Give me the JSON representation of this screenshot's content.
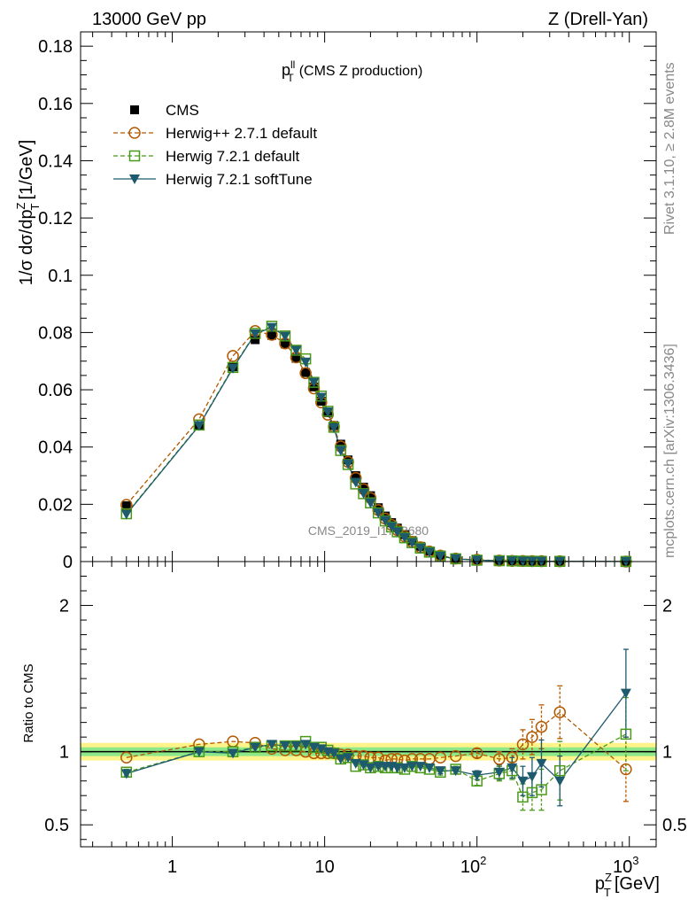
{
  "header": {
    "left": "13000 GeV pp",
    "right": "Z (Drell-Yan)"
  },
  "side": {
    "rivet": "Rivet 3.1.10, ≥ 2.8M events",
    "mcplots": "mcplots.cern.ch [arXiv:1306.3436]"
  },
  "plot": {
    "title_main": "p",
    "title_sup": "ll",
    "title_sub": "T",
    "title_rest": "(CMS Z production)",
    "watermark": "CMS_2019_I1753680",
    "ylabel_main": "1/σ dσ/dp",
    "ylabel_sup": "Z",
    "ylabel_sub": "T",
    "ylabel_unit": "[1/GeV]",
    "ratio_ylabel": "Ratio to CMS",
    "xlabel_main": "p",
    "xlabel_sup": "Z",
    "xlabel_sub": "T",
    "xlabel_unit": "[GeV]"
  },
  "legend": [
    {
      "name": "CMS",
      "color": "#000000",
      "marker": "square-filled",
      "line": "none"
    },
    {
      "name": "Herwig++ 2.7.1 default",
      "color": "#b35900",
      "marker": "circle-open",
      "line": "dashed"
    },
    {
      "name": "Herwig 7.2.1 default",
      "color": "#4a9a1a",
      "marker": "square-open",
      "line": "dashed"
    },
    {
      "name": "Herwig 7.2.1 softTune",
      "color": "#1e5a6e",
      "marker": "triangle-down-filled",
      "line": "solid"
    }
  ],
  "chart_data": {
    "type": "line",
    "x_scale": "log",
    "xlim": [
      0.25,
      1500
    ],
    "ylim_main": [
      0,
      0.185
    ],
    "ylim_ratio": [
      0.35,
      2.3
    ],
    "x_ticks": [
      "1",
      "10",
      "10^2",
      "10^3"
    ],
    "y_ticks_main": [
      "0",
      "0.02",
      "0.04",
      "0.06",
      "0.08",
      "0.1",
      "0.12",
      "0.14",
      "0.16",
      "0.18"
    ],
    "y_ticks_ratio": [
      "0.5",
      "1",
      "2"
    ],
    "x": [
      0.5,
      1.5,
      2.5,
      3.5,
      4.5,
      5.5,
      6.5,
      7.5,
      8.5,
      9.5,
      10.5,
      11.5,
      12.75,
      14.25,
      16,
      18,
      20,
      22.5,
      25,
      27.5,
      30,
      33.5,
      37.5,
      42.5,
      48.75,
      57.5,
      72.5,
      100,
      140,
      170,
      200,
      230,
      265,
      350,
      950
    ],
    "series": [
      {
        "name": "CMS",
        "values": [
          0.0195,
          0.0475,
          0.068,
          0.0775,
          0.079,
          0.076,
          0.071,
          0.066,
          0.061,
          0.056,
          0.052,
          0.0475,
          0.041,
          0.0355,
          0.03,
          0.026,
          0.023,
          0.0188,
          0.0159,
          0.0136,
          0.0117,
          0.0094,
          0.0073,
          0.0053,
          0.0037,
          0.0022,
          0.0011,
          0.0006,
          0.00035,
          0.00025,
          0.0002,
          0.00015,
          0.00012,
          8e-05,
          2e-05
        ],
        "ratio_band_inner": 0.03,
        "ratio_band_outer": 0.06
      },
      {
        "name": "Herwig++ 2.7.1 default",
        "values": [
          0.0198,
          0.0497,
          0.0718,
          0.0805,
          0.0792,
          0.0762,
          0.0713,
          0.0658,
          0.0605,
          0.0556,
          0.0513,
          0.0471,
          0.0402,
          0.0348,
          0.0292,
          0.0253,
          0.0222,
          0.018,
          0.015,
          0.0128,
          0.011,
          0.0088,
          0.0069,
          0.005,
          0.0035,
          0.0021,
          0.00105,
          0.0006,
          0.00033,
          0.00024,
          0.00021,
          0.00016,
          0.00014,
          0.0001,
          1.8e-05
        ],
        "ratio": [
          0.96,
          1.05,
          1.07,
          1.06,
          1.02,
          1.01,
          1.01,
          1.0,
          0.99,
          0.99,
          0.99,
          0.99,
          0.98,
          0.98,
          0.97,
          0.97,
          0.96,
          0.96,
          0.94,
          0.95,
          0.95,
          0.94,
          0.95,
          0.95,
          0.95,
          0.96,
          0.97,
          0.99,
          0.95,
          0.96,
          1.05,
          1.1,
          1.17,
          1.27,
          0.88
        ],
        "ratio_err": [
          0,
          0,
          0,
          0,
          0,
          0,
          0,
          0,
          0,
          0,
          0,
          0,
          0,
          0,
          0,
          0,
          0,
          0,
          0,
          0,
          0,
          0,
          0,
          0,
          0,
          0,
          0,
          0.03,
          0.05,
          0.06,
          0.1,
          0.12,
          0.15,
          0.18,
          0.22
        ]
      },
      {
        "name": "Herwig 7.2.1 default",
        "values": [
          0.0167,
          0.0477,
          0.0678,
          0.0797,
          0.0822,
          0.0788,
          0.0738,
          0.0708,
          0.0626,
          0.0578,
          0.0525,
          0.0469,
          0.0388,
          0.0339,
          0.0271,
          0.0237,
          0.0205,
          0.017,
          0.0142,
          0.0121,
          0.0104,
          0.0083,
          0.0066,
          0.0047,
          0.0033,
          0.0019,
          0.00097,
          0.00048,
          0.0003,
          0.00022,
          0.00014,
          0.00011,
          9e-05,
          7e-05,
          2.3e-05
        ],
        "ratio": [
          0.86,
          1.0,
          1.0,
          1.03,
          1.04,
          1.04,
          1.04,
          1.07,
          1.03,
          1.03,
          1.01,
          0.99,
          0.95,
          0.96,
          0.9,
          0.91,
          0.89,
          0.9,
          0.89,
          0.89,
          0.89,
          0.88,
          0.9,
          0.89,
          0.88,
          0.86,
          0.88,
          0.8,
          0.85,
          0.87,
          0.69,
          0.72,
          0.74,
          0.87,
          1.12
        ],
        "ratio_err": [
          0.02,
          0.01,
          0.01,
          0.01,
          0.01,
          0.01,
          0.01,
          0.01,
          0.01,
          0.01,
          0.01,
          0.01,
          0.01,
          0.01,
          0.01,
          0.01,
          0.01,
          0.01,
          0.01,
          0.01,
          0.01,
          0.01,
          0.01,
          0.01,
          0.01,
          0.02,
          0.02,
          0.03,
          0.05,
          0.06,
          0.09,
          0.12,
          0.14,
          0.2,
          0.25
        ]
      },
      {
        "name": "Herwig 7.2.1 softTune",
        "values": [
          0.0165,
          0.0475,
          0.0675,
          0.0795,
          0.0818,
          0.0787,
          0.0738,
          0.0697,
          0.0626,
          0.0574,
          0.0523,
          0.0467,
          0.0388,
          0.0341,
          0.0277,
          0.0238,
          0.0205,
          0.017,
          0.0143,
          0.0122,
          0.0104,
          0.0084,
          0.0066,
          0.0047,
          0.0033,
          0.0019,
          0.00097,
          0.00051,
          0.0003,
          0.00022,
          0.00016,
          0.00012,
          0.00011,
          6e-05,
          2.8e-05
        ],
        "ratio": [
          0.85,
          1.0,
          0.99,
          1.03,
          1.05,
          1.04,
          1.04,
          1.05,
          1.03,
          1.02,
          1.0,
          0.99,
          0.95,
          0.96,
          0.92,
          0.91,
          0.89,
          0.9,
          0.9,
          0.9,
          0.89,
          0.89,
          0.9,
          0.9,
          0.89,
          0.87,
          0.87,
          0.84,
          0.86,
          0.89,
          0.8,
          0.83,
          0.92,
          0.8,
          1.4
        ],
        "ratio_err": [
          0.02,
          0.01,
          0.01,
          0.01,
          0.01,
          0.01,
          0.01,
          0.01,
          0.01,
          0.01,
          0.01,
          0.01,
          0.01,
          0.01,
          0.01,
          0.01,
          0.01,
          0.01,
          0.01,
          0.01,
          0.01,
          0.01,
          0.01,
          0.01,
          0.01,
          0.02,
          0.02,
          0.03,
          0.05,
          0.07,
          0.1,
          0.13,
          0.16,
          0.17,
          0.3
        ]
      }
    ]
  }
}
